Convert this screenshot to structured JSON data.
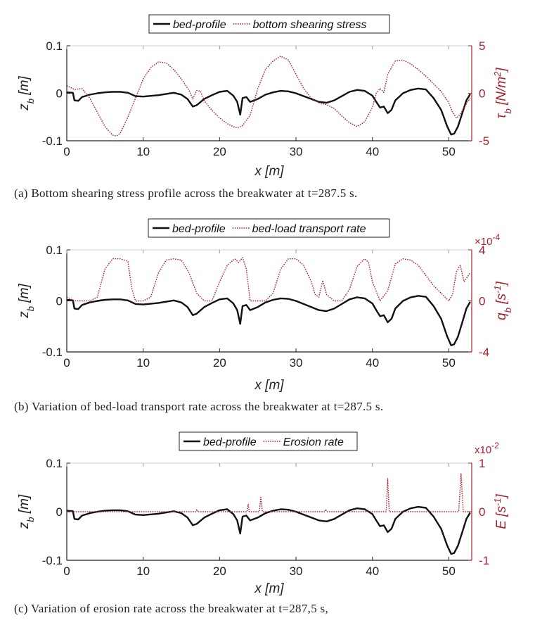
{
  "chart_data": [
    {
      "type": "line",
      "title": "",
      "xlabel": "x [m]",
      "ylabel_left": "z_b [m]",
      "ylabel_right": "τ_b [N/m^2]",
      "xlim": [
        0,
        53
      ],
      "xticks": [
        "0",
        "10",
        "20",
        "30",
        "40",
        "50"
      ],
      "ylim_left": [
        -0.1,
        0.1
      ],
      "yticks_left": [
        "-0.1",
        "0",
        "0.1"
      ],
      "ylim_right": [
        -5,
        5
      ],
      "yticks_right": [
        "-5",
        "0",
        "5"
      ],
      "right_exponent": "",
      "legend": {
        "placement": "top-center",
        "entries": [
          "bed-profile",
          "bottom shearing stress"
        ]
      },
      "series": [
        {
          "name": "bed-profile",
          "axis": "left",
          "color": "#111111",
          "style": "solid",
          "x": [
            0,
            0.8,
            1,
            1.5,
            2,
            3,
            4,
            5,
            6,
            7,
            8,
            9,
            10,
            12,
            14,
            15,
            15.8,
            16.5,
            17,
            18,
            19,
            20,
            21,
            21.8,
            22.3,
            22.7,
            23,
            23.5,
            24,
            25,
            26,
            27,
            28,
            29,
            30,
            31,
            32,
            33,
            34,
            35,
            36,
            37,
            38,
            39,
            40,
            40.5,
            41,
            41.5,
            42,
            42.5,
            43,
            44,
            45,
            46,
            47,
            48,
            49,
            49.8,
            50.3,
            50.7,
            51.2,
            51.8,
            52.3,
            52.8
          ],
          "y": [
            0.002,
            0.001,
            -0.015,
            -0.016,
            -0.008,
            -0.003,
            0,
            0.002,
            0.003,
            0.003,
            0.001,
            -0.006,
            -0.007,
            -0.004,
            0.001,
            -0.003,
            -0.012,
            -0.028,
            -0.025,
            -0.012,
            -0.004,
            0.003,
            0.005,
            -0.005,
            -0.018,
            -0.045,
            -0.01,
            -0.008,
            -0.018,
            -0.012,
            -0.003,
            0.002,
            0.005,
            0.004,
            0,
            -0.006,
            -0.012,
            -0.018,
            -0.02,
            -0.015,
            -0.006,
            0.003,
            0.007,
            0.005,
            -0.005,
            -0.018,
            -0.03,
            -0.028,
            -0.042,
            -0.035,
            -0.015,
            0,
            0.007,
            0.01,
            0.008,
            -0.01,
            -0.035,
            -0.07,
            -0.087,
            -0.085,
            -0.07,
            -0.04,
            -0.015,
            -0.002
          ]
        },
        {
          "name": "bottom shearing stress",
          "axis": "right",
          "color": "#b0202c",
          "style": "dotted",
          "x": [
            0,
            1,
            2,
            3,
            4,
            5,
            6,
            6.5,
            7,
            8,
            9,
            10,
            11,
            12,
            13,
            14,
            15,
            16,
            16.5,
            17,
            17.5,
            18,
            19,
            20,
            21,
            22,
            22.5,
            23,
            24,
            25,
            26,
            27,
            28,
            29,
            30,
            31,
            32,
            33,
            34,
            35,
            36,
            37,
            38,
            39,
            40,
            40.5,
            41,
            41.5,
            42,
            43,
            44,
            45,
            46,
            47,
            48,
            49,
            50,
            50.5,
            51,
            51.5,
            52,
            52.8
          ],
          "y": [
            0.8,
            0.4,
            0.5,
            -0.5,
            -2,
            -3.5,
            -4.4,
            -4.5,
            -4.2,
            -2.5,
            -0.5,
            1.5,
            2.7,
            3.3,
            3.2,
            2.5,
            1.5,
            0.3,
            -0.6,
            0.3,
            0.2,
            -0.8,
            -1.8,
            -2.6,
            -3.2,
            -3.6,
            -3.6,
            -3.4,
            -2.3,
            0.5,
            2.5,
            3.4,
            3.9,
            3.5,
            2,
            0.5,
            -0.5,
            -1,
            -1.2,
            -1.6,
            -2.4,
            -3.1,
            -3.5,
            -3,
            -1.5,
            0,
            0.5,
            0.1,
            2,
            3.4,
            3.5,
            3.1,
            2.5,
            1.8,
            1,
            0.2,
            -1,
            -2,
            -2.6,
            -2.2,
            -1.5,
            -0.5
          ]
        }
      ]
    },
    {
      "type": "line",
      "title": "",
      "xlabel": "x [m]",
      "ylabel_left": "z_b [m]",
      "ylabel_right": "q_b [s^-1]",
      "xlim": [
        0,
        53
      ],
      "xticks": [
        "0",
        "10",
        "20",
        "30",
        "40",
        "50"
      ],
      "ylim_left": [
        -0.1,
        0.1
      ],
      "yticks_left": [
        "-0.1",
        "0",
        "0.1"
      ],
      "ylim_right": [
        -4,
        4
      ],
      "yticks_right": [
        "-4",
        "0",
        "4"
      ],
      "right_exponent": "×10-4",
      "legend": {
        "placement": "top-center",
        "entries": [
          "bed-profile",
          "bed-load transport rate"
        ]
      },
      "series": [
        {
          "name": "bed-profile",
          "axis": "left",
          "color": "#111111",
          "style": "solid",
          "x": [
            0,
            0.8,
            1,
            1.5,
            2,
            3,
            4,
            5,
            6,
            7,
            8,
            9,
            10,
            12,
            14,
            15,
            15.8,
            16.5,
            17,
            18,
            19,
            20,
            21,
            21.8,
            22.3,
            22.7,
            23,
            23.5,
            24,
            25,
            26,
            27,
            28,
            29,
            30,
            31,
            32,
            33,
            34,
            35,
            36,
            37,
            38,
            39,
            40,
            40.5,
            41,
            41.5,
            42,
            42.5,
            43,
            44,
            45,
            46,
            47,
            48,
            49,
            49.8,
            50.3,
            50.7,
            51.2,
            51.8,
            52.3,
            52.8
          ],
          "y": [
            0.002,
            0.001,
            -0.015,
            -0.016,
            -0.008,
            -0.003,
            0,
            0.002,
            0.003,
            0.003,
            0.001,
            -0.006,
            -0.007,
            -0.004,
            0.001,
            -0.003,
            -0.012,
            -0.028,
            -0.025,
            -0.012,
            -0.004,
            0.003,
            0.005,
            -0.005,
            -0.018,
            -0.045,
            -0.01,
            -0.008,
            -0.018,
            -0.012,
            -0.003,
            0.002,
            0.005,
            0.004,
            0,
            -0.006,
            -0.012,
            -0.018,
            -0.02,
            -0.015,
            -0.006,
            0.003,
            0.007,
            0.005,
            -0.005,
            -0.018,
            -0.03,
            -0.028,
            -0.042,
            -0.035,
            -0.015,
            0,
            0.007,
            0.01,
            0.008,
            -0.01,
            -0.035,
            -0.07,
            -0.087,
            -0.085,
            -0.07,
            -0.04,
            -0.015,
            -0.002
          ]
        },
        {
          "name": "bed-load transport rate",
          "axis": "right",
          "color": "#b0202c",
          "style": "dotted",
          "x": [
            0,
            1,
            2,
            3,
            4,
            5,
            6,
            7,
            8,
            8.5,
            9,
            10,
            11,
            12,
            13,
            14,
            15,
            16,
            17,
            18,
            19,
            20,
            21,
            22,
            22.5,
            23,
            23.5,
            24,
            25,
            26,
            27,
            28,
            29,
            30,
            31,
            32,
            32.5,
            33,
            33.5,
            34,
            35,
            36,
            37,
            38,
            39,
            39.5,
            40,
            41,
            42,
            43,
            44,
            45,
            46,
            47,
            48,
            49,
            50,
            50.5,
            51,
            51.5,
            52,
            52.8
          ],
          "y": [
            0.3,
            0,
            0,
            0,
            0.3,
            2.5,
            3.3,
            3.3,
            3.1,
            1,
            0,
            0,
            0.3,
            2.2,
            3.2,
            3.3,
            3.2,
            2.2,
            0.6,
            0,
            0,
            1.5,
            2.8,
            3.3,
            3,
            3.4,
            2.5,
            0,
            0,
            0,
            0.6,
            2.5,
            3.3,
            3.3,
            2.8,
            1.5,
            0.5,
            0.3,
            1.6,
            0.5,
            0,
            0,
            0.9,
            2.7,
            3.3,
            3,
            1.5,
            0,
            0.8,
            2.9,
            3.3,
            3.2,
            2.8,
            2,
            1.2,
            0.6,
            0,
            0.5,
            2.3,
            2.8,
            1.5,
            2.2
          ]
        }
      ]
    },
    {
      "type": "line",
      "title": "",
      "xlabel": "x [m]",
      "ylabel_left": "z_b [m]",
      "ylabel_right": "E [s^-1]",
      "xlim": [
        0,
        53
      ],
      "xticks": [
        "0",
        "10",
        "20",
        "30",
        "40",
        "50"
      ],
      "ylim_left": [
        -0.1,
        0.1
      ],
      "yticks_left": [
        "-0.1",
        "0",
        "0.1"
      ],
      "ylim_right": [
        -1,
        1
      ],
      "yticks_right": [
        "-1",
        "0",
        "1"
      ],
      "right_exponent": "x10-2",
      "legend": {
        "placement": "top-center",
        "entries": [
          "bed-profile",
          "Erosion rate"
        ]
      },
      "series": [
        {
          "name": "bed-profile",
          "axis": "left",
          "color": "#111111",
          "style": "solid",
          "x": [
            0,
            0.8,
            1,
            1.5,
            2,
            3,
            4,
            5,
            6,
            7,
            8,
            9,
            10,
            12,
            14,
            15,
            15.8,
            16.5,
            17,
            18,
            19,
            20,
            21,
            21.8,
            22.3,
            22.7,
            23,
            23.5,
            24,
            25,
            26,
            27,
            28,
            29,
            30,
            31,
            32,
            33,
            34,
            35,
            36,
            37,
            38,
            39,
            40,
            40.5,
            41,
            41.5,
            42,
            42.5,
            43,
            44,
            45,
            46,
            47,
            48,
            49,
            49.8,
            50.3,
            50.7,
            51.2,
            51.8,
            52.3,
            52.8
          ],
          "y": [
            0.002,
            0.001,
            -0.015,
            -0.016,
            -0.008,
            -0.003,
            0,
            0.002,
            0.003,
            0.003,
            0.001,
            -0.006,
            -0.007,
            -0.004,
            0.001,
            -0.003,
            -0.012,
            -0.028,
            -0.025,
            -0.012,
            -0.004,
            0.003,
            0.005,
            -0.005,
            -0.018,
            -0.045,
            -0.01,
            -0.008,
            -0.018,
            -0.012,
            -0.003,
            0.002,
            0.005,
            0.004,
            0,
            -0.006,
            -0.012,
            -0.018,
            -0.02,
            -0.015,
            -0.006,
            0.003,
            0.007,
            0.005,
            -0.005,
            -0.018,
            -0.03,
            -0.028,
            -0.042,
            -0.035,
            -0.015,
            0,
            0.007,
            0.01,
            0.008,
            -0.01,
            -0.035,
            -0.07,
            -0.087,
            -0.085,
            -0.07,
            -0.04,
            -0.015,
            -0.002
          ]
        },
        {
          "name": "Erosion rate",
          "axis": "right",
          "color": "#b0202c",
          "style": "dotted",
          "x": [
            0,
            16.9,
            17,
            17.1,
            23.6,
            23.75,
            23.9,
            25.2,
            25.4,
            25.6,
            33.8,
            33.9,
            34,
            41.8,
            42,
            42.2,
            51.3,
            51.6,
            51.9,
            52.8
          ],
          "y": [
            0,
            0,
            0.05,
            0,
            0,
            0.15,
            0,
            0,
            0.3,
            0,
            0,
            0.05,
            0,
            0,
            0.68,
            0,
            0,
            0.78,
            0,
            0
          ]
        }
      ]
    }
  ],
  "captions": [
    "(a) Bottom shearing stress profile across the breakwater at t=287.5 s.",
    "(b) Variation of bed-load transport rate across the breakwater at t=287.5 s.",
    "(c) Variation of erosion rate across the breakwater at t=287,5 s,"
  ],
  "colors": {
    "profile": "#111111",
    "secondary": "#b0202c",
    "axis": "#222222",
    "right_axis": "#a8202c"
  }
}
